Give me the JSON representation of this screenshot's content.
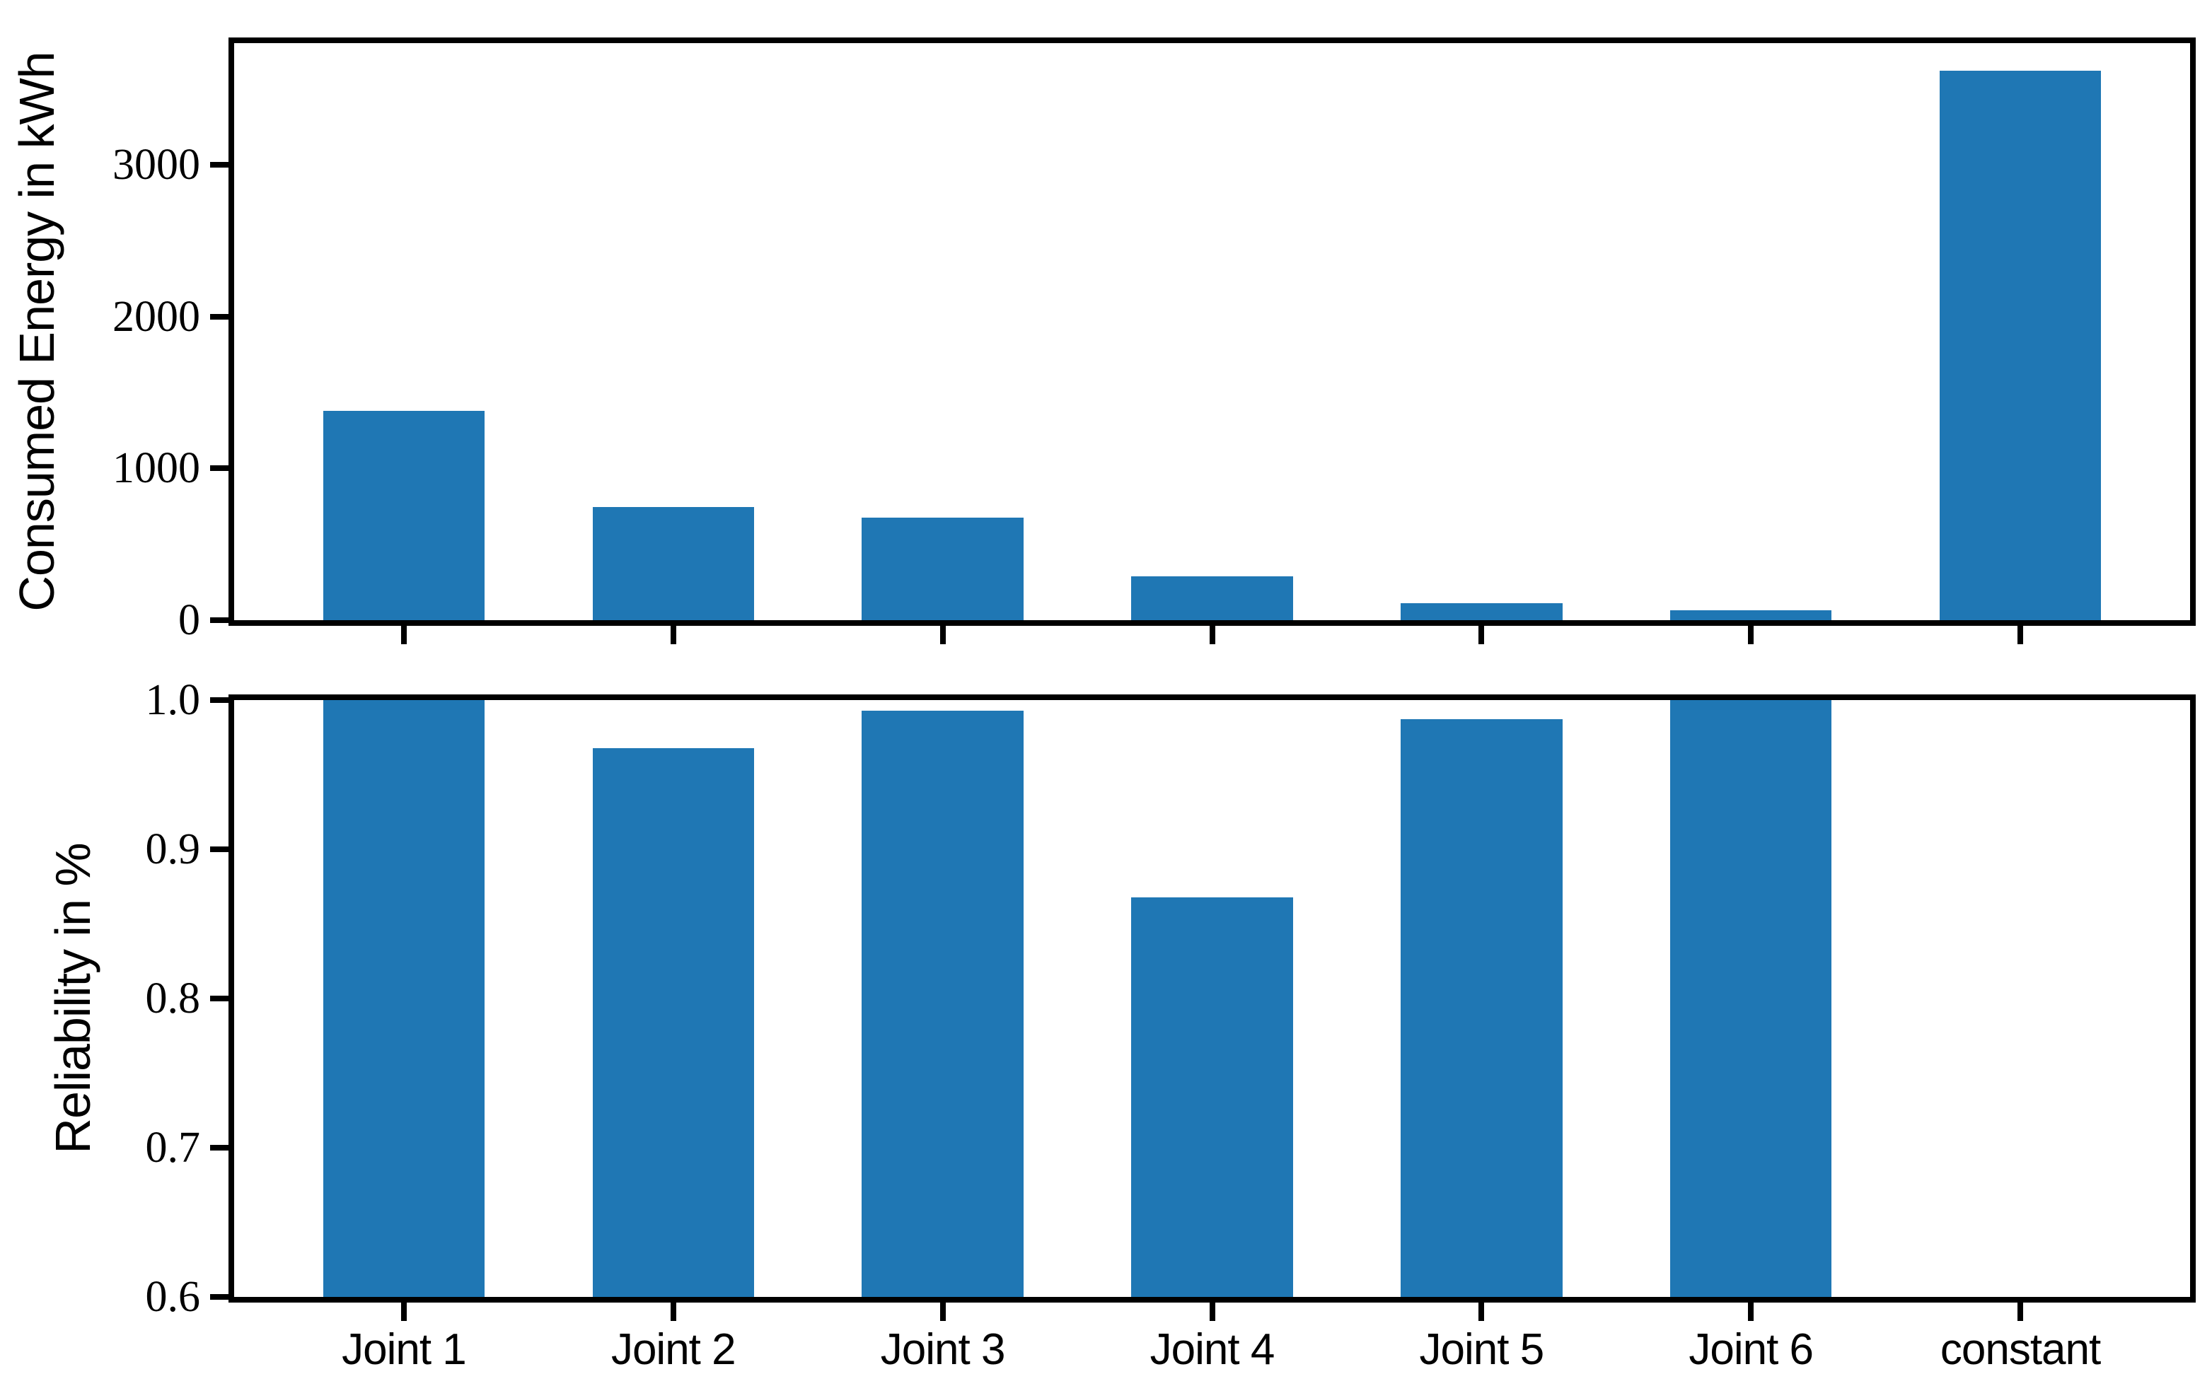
{
  "figure": {
    "background": "#ffffff",
    "bar_color": "#1f77b4",
    "axis_color": "#000000"
  },
  "chart_data": [
    {
      "id": "consumed-energy",
      "type": "bar",
      "title": "",
      "ylabel": "Consumed Energy in kWh",
      "xlabel": "",
      "categories": [
        "Joint 1",
        "Joint 2",
        "Joint 3",
        "Joint 4",
        "Joint 5",
        "Joint 6",
        "constant"
      ],
      "values": [
        1380,
        745,
        675,
        290,
        110,
        65,
        3620
      ],
      "ylim": [
        0,
        3800
      ],
      "yticks": [
        0,
        1000,
        2000,
        3000
      ],
      "ytick_labels": [
        "0",
        "1000",
        "2000",
        "3000"
      ],
      "show_xtick_labels": false,
      "bar_width": 0.6,
      "grid": false,
      "legend": null
    },
    {
      "id": "reliability",
      "type": "bar",
      "title": "",
      "ylabel": "Reliability in %",
      "xlabel": "",
      "categories": [
        "Joint 1",
        "Joint 2",
        "Joint 3",
        "Joint 4",
        "Joint 5",
        "Joint 6",
        "constant"
      ],
      "values": [
        1.0,
        0.968,
        0.993,
        0.868,
        0.987,
        1.0,
        0.0
      ],
      "ylim": [
        0.6,
        1.0
      ],
      "yticks": [
        0.6,
        0.7,
        0.8,
        0.9,
        1.0
      ],
      "ytick_labels": [
        "0.6",
        "0.7",
        "0.8",
        "0.9",
        "1.0"
      ],
      "show_xtick_labels": true,
      "bar_width": 0.6,
      "grid": false,
      "legend": null
    }
  ]
}
